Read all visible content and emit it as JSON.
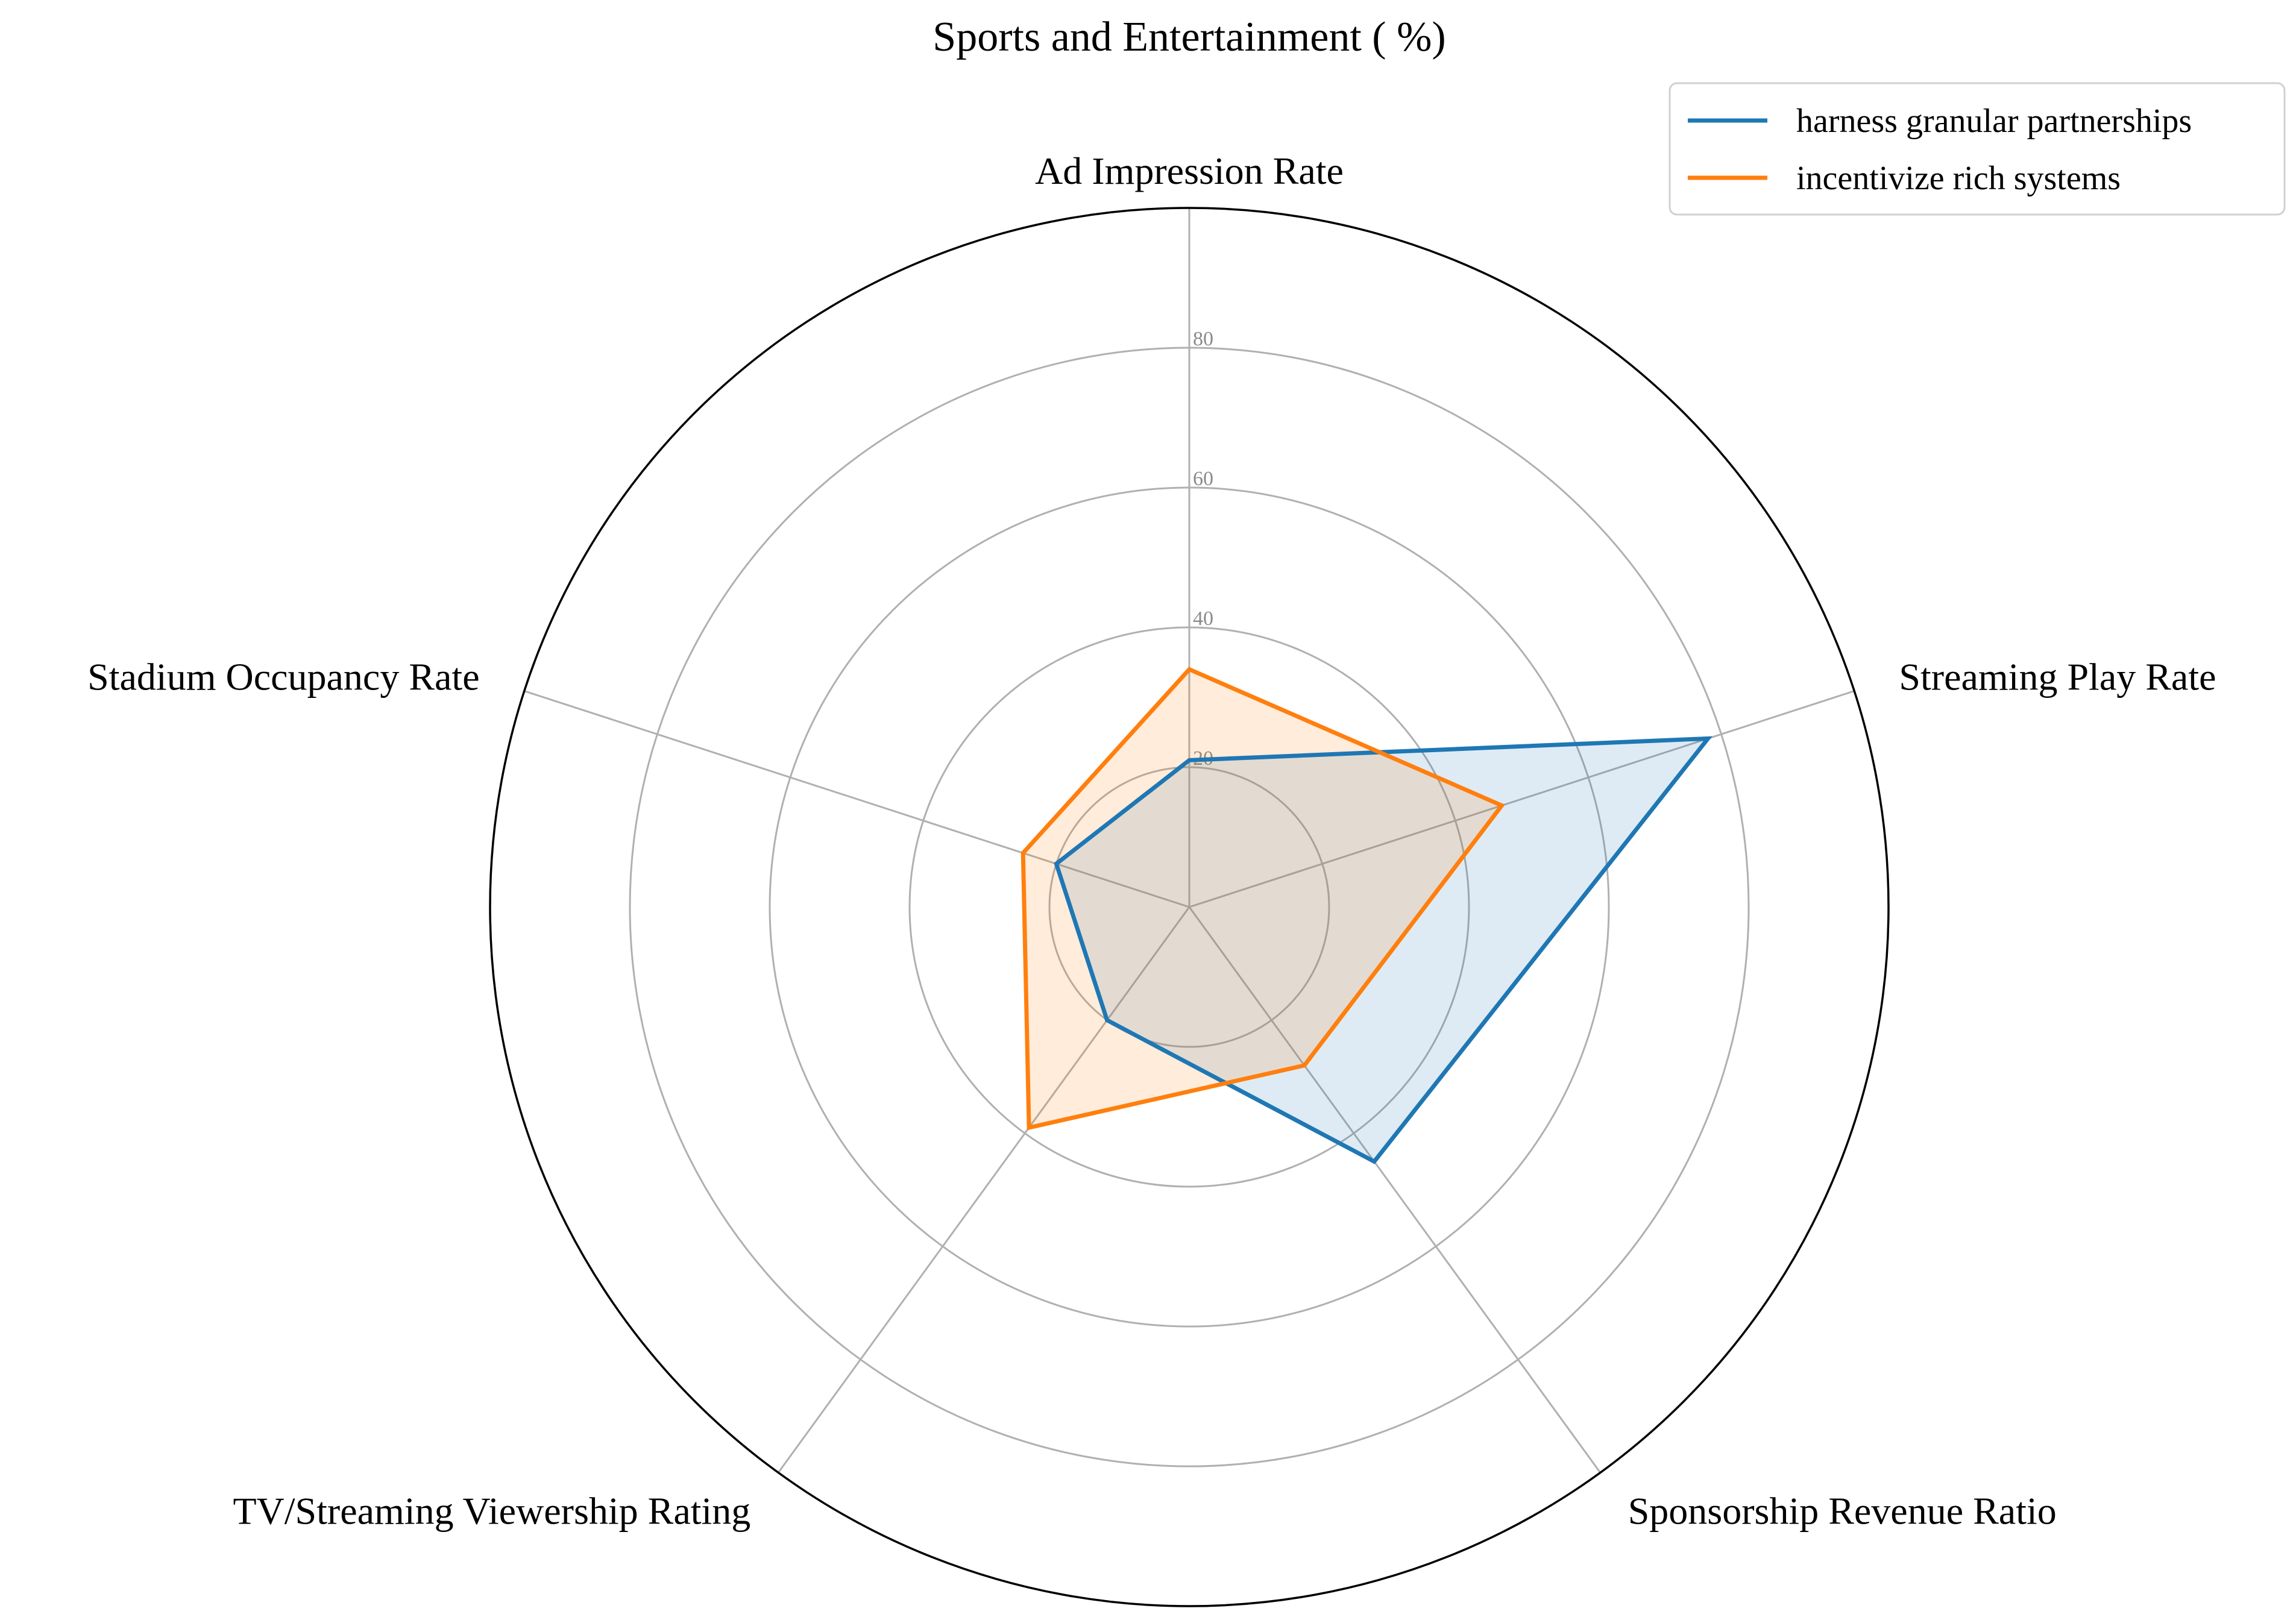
{
  "chart_data": {
    "type": "radar",
    "title": "Sports and Entertainment ( %)",
    "axes": [
      "Ad Impression Rate",
      "Streaming Play Rate",
      "Sponsorship Revenue Ratio",
      "TV/Streaming Viewership Rating",
      "Stadium Occupancy Rate"
    ],
    "rmax": 100,
    "ticks": [
      20,
      40,
      60,
      80
    ],
    "tick_labels": [
      "20",
      "40",
      "60",
      "80"
    ],
    "grid": true,
    "legend_position": "top-right",
    "series": [
      {
        "name": "harness granular partnerships",
        "color": "#1f77b4",
        "values": [
          21,
          78,
          45,
          20,
          20
        ]
      },
      {
        "name": "incentivize rich systems",
        "color": "#ff7f0e",
        "values": [
          34,
          47,
          28,
          39,
          25
        ]
      }
    ]
  }
}
